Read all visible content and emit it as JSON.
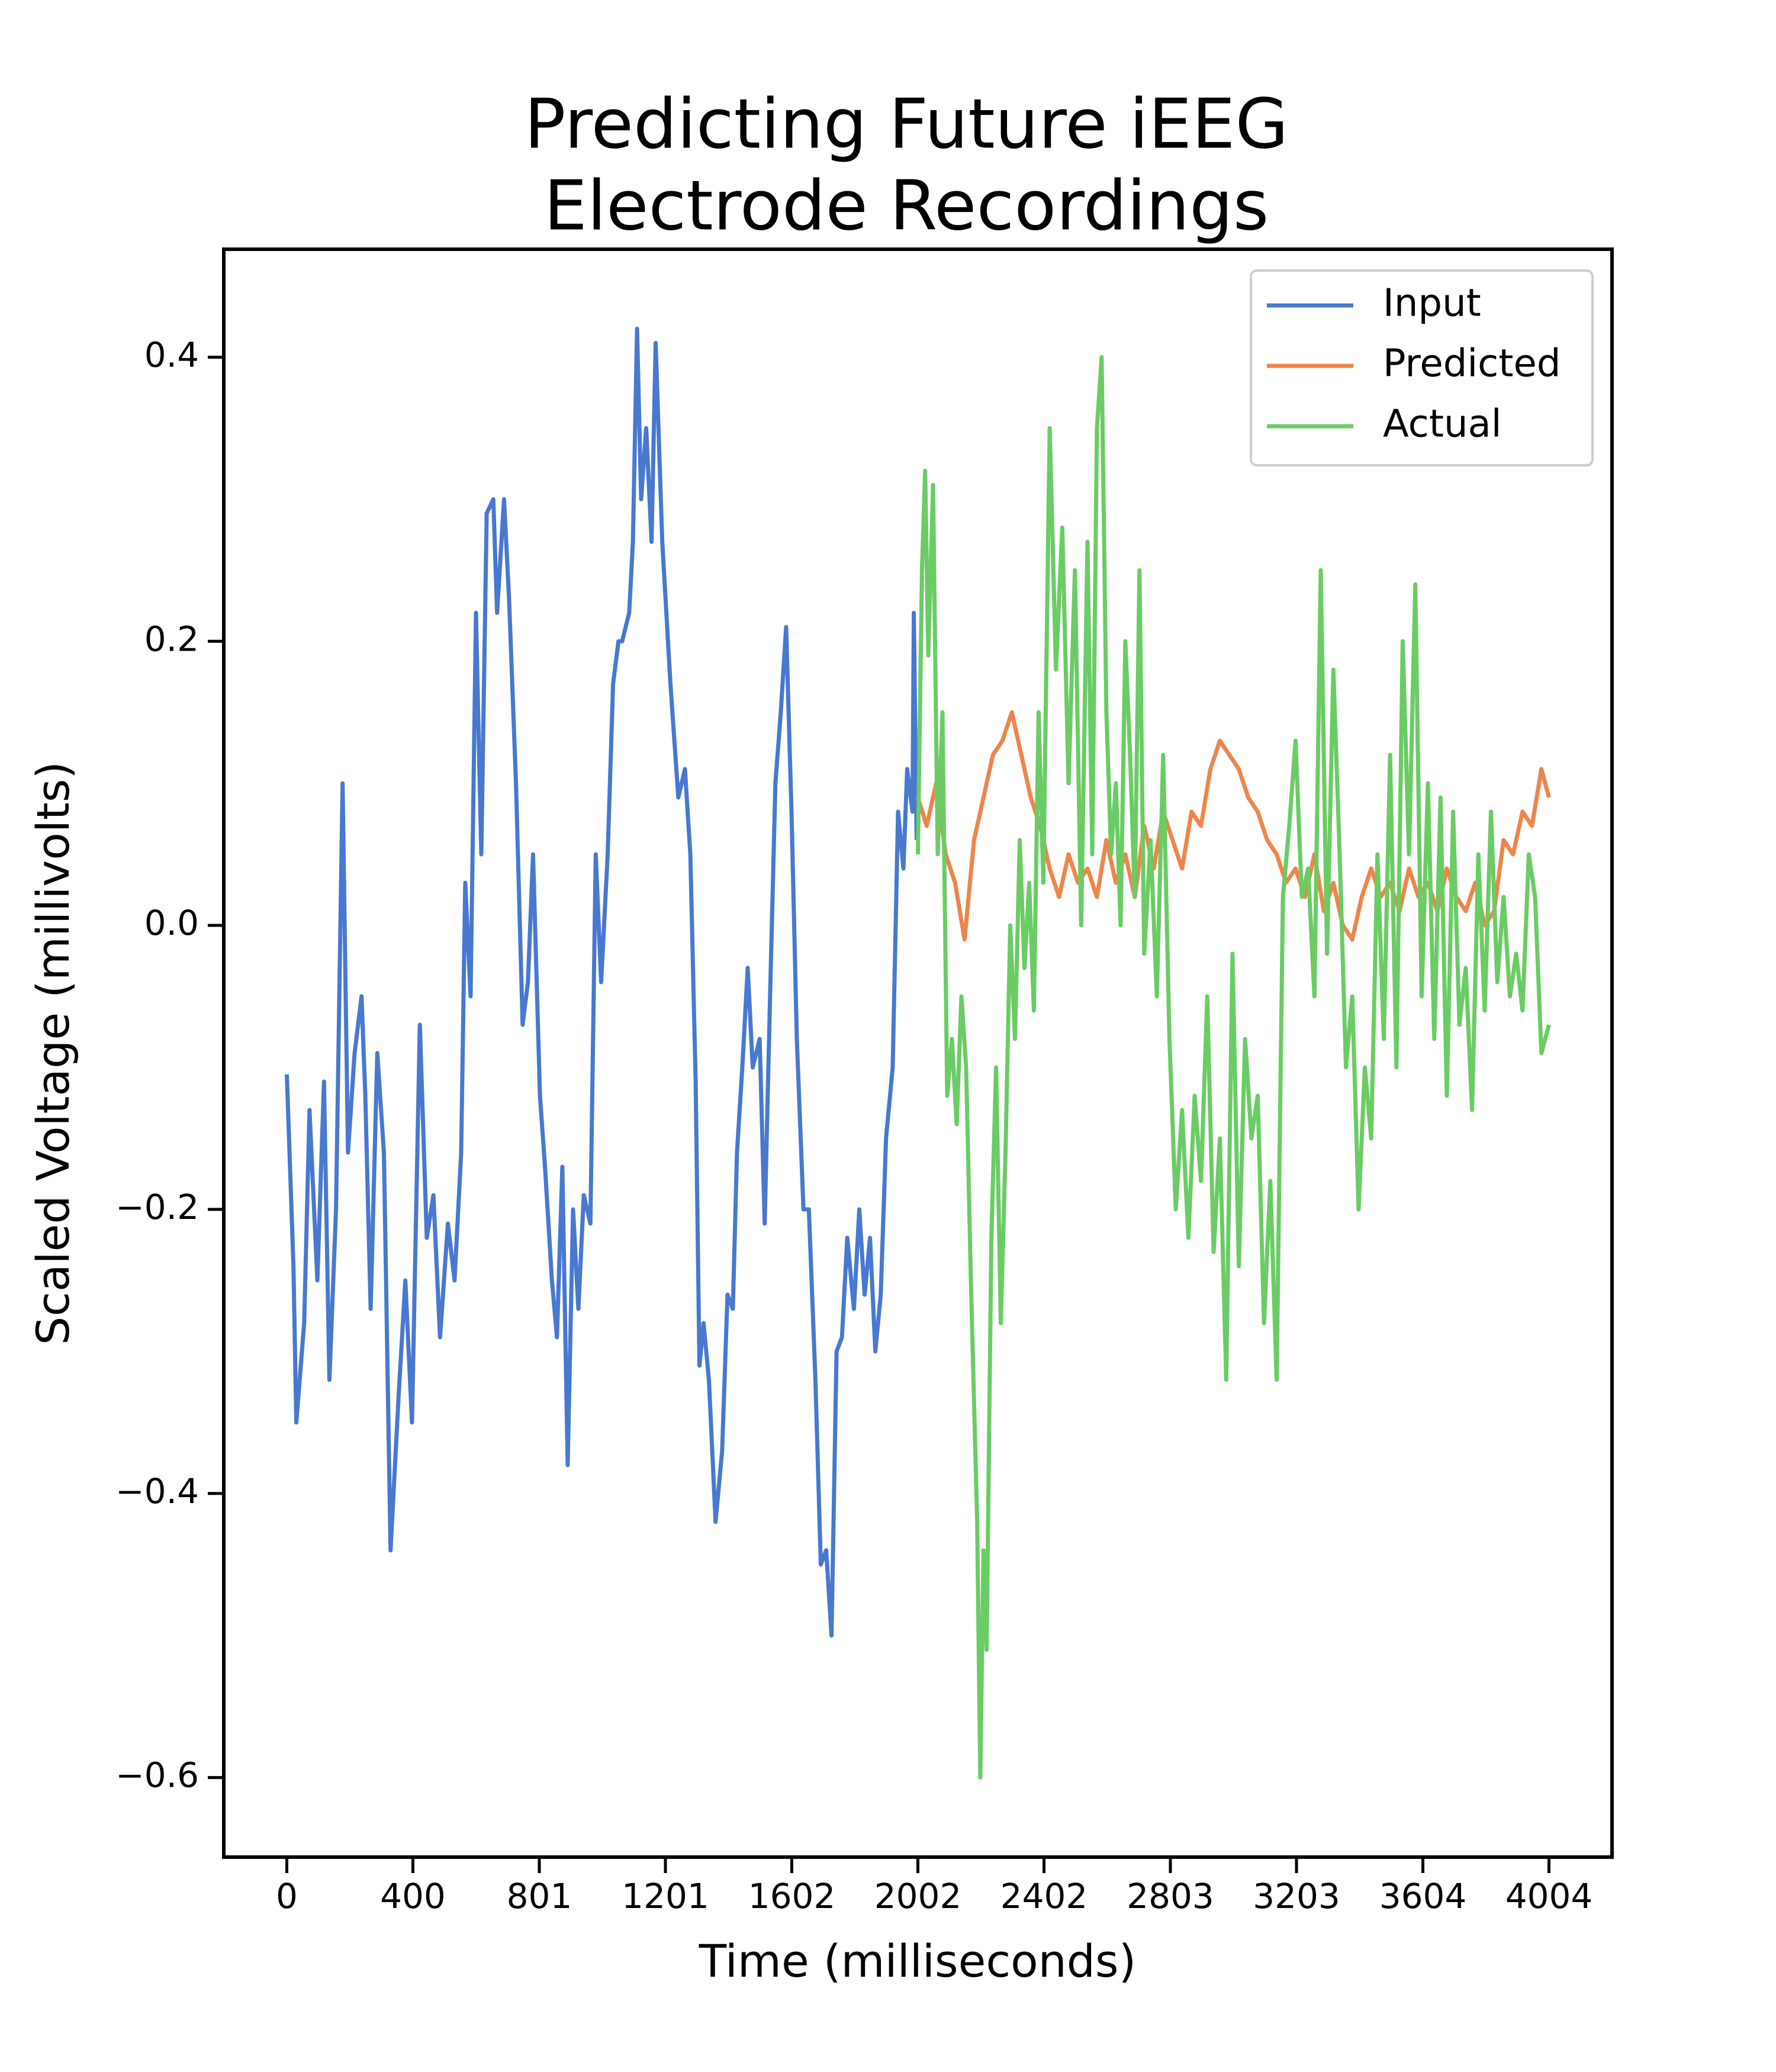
{
  "chart_data": {
    "type": "line",
    "title": [
      "Predicting Future iEEG",
      "Electrode Recordings"
    ],
    "x_label": "Time (milliseconds)",
    "y_label": "Scaled Voltage (millivolts)",
    "xlim": [
      -200,
      4204
    ],
    "ylim": [
      -0.656,
      0.476
    ],
    "xticks": [
      0,
      400,
      801,
      1201,
      1602,
      2002,
      2402,
      2803,
      3203,
      3604,
      4004
    ],
    "yticks": [
      {
        "value": -0.6,
        "label": "−0.6"
      },
      {
        "value": -0.4,
        "label": "−0.4"
      },
      {
        "value": -0.2,
        "label": "−0.2"
      },
      {
        "value": 0,
        "label": "0.0"
      },
      0.2,
      0.4
    ],
    "legend": "upper right",
    "series": [
      {
        "name": "Input",
        "color": "#4878d0",
        "x": [
          0,
          21,
          30,
          55,
          72,
          97,
          118,
          135,
          156,
          177,
          194,
          215,
          237,
          249,
          266,
          287,
          308,
          329,
          355,
          376,
          397,
          422,
          444,
          465,
          486,
          511,
          532,
          553,
          566,
          583,
          600,
          617,
          634,
          655,
          667,
          689,
          705,
          727,
          748,
          765,
          781,
          803,
          819,
          841,
          857,
          874,
          891,
          908,
          925,
          942,
          963,
          980,
          997,
          1018,
          1035,
          1052,
          1064,
          1086,
          1098,
          1111,
          1124,
          1140,
          1157,
          1170,
          1191,
          1217,
          1242,
          1263,
          1280,
          1297,
          1309,
          1322,
          1339,
          1360,
          1381,
          1398,
          1415,
          1428,
          1445,
          1462,
          1478,
          1500,
          1516,
          1533,
          1550,
          1567,
          1584,
          1601,
          1618,
          1639,
          1656,
          1677,
          1694,
          1711,
          1728,
          1744,
          1761,
          1778,
          1799,
          1816,
          1833,
          1850,
          1867,
          1884,
          1901,
          1922,
          1939,
          1956,
          1968,
          1985,
          1989,
          1998
        ],
        "values": [
          -0.105,
          -0.24,
          -0.35,
          -0.28,
          -0.13,
          -0.25,
          -0.11,
          -0.32,
          -0.2,
          0.1,
          -0.16,
          -0.09,
          -0.05,
          -0.12,
          -0.27,
          -0.09,
          -0.16,
          -0.44,
          -0.33,
          -0.25,
          -0.35,
          -0.07,
          -0.22,
          -0.19,
          -0.29,
          -0.21,
          -0.25,
          -0.16,
          0.03,
          -0.05,
          0.22,
          0.05,
          0.29,
          0.3,
          0.22,
          0.3,
          0.23,
          0.1,
          -0.07,
          -0.04,
          0.05,
          -0.12,
          -0.17,
          -0.25,
          -0.29,
          -0.17,
          -0.38,
          -0.2,
          -0.27,
          -0.19,
          -0.21,
          0.05,
          -0.04,
          0.05,
          0.17,
          0.2,
          0.2,
          0.22,
          0.27,
          0.42,
          0.3,
          0.35,
          0.27,
          0.41,
          0.27,
          0.17,
          0.09,
          0.11,
          0.05,
          -0.11,
          -0.31,
          -0.28,
          -0.32,
          -0.42,
          -0.37,
          -0.26,
          -0.27,
          -0.16,
          -0.1,
          -0.03,
          -0.1,
          -0.08,
          -0.21,
          -0.05,
          0.1,
          0.15,
          0.21,
          0.08,
          -0.08,
          -0.2,
          -0.2,
          -0.32,
          -0.45,
          -0.44,
          -0.5,
          -0.3,
          -0.29,
          -0.22,
          -0.27,
          -0.2,
          -0.26,
          -0.22,
          -0.3,
          -0.26,
          -0.15,
          -0.1,
          0.08,
          0.04,
          0.11,
          0.08,
          0.22,
          0.06
        ]
      },
      {
        "name": "Predicted",
        "color": "#ee854a",
        "x": [
          2002,
          2030,
          2060,
          2090,
          2120,
          2150,
          2180,
          2210,
          2240,
          2270,
          2300,
          2330,
          2360,
          2390,
          2420,
          2450,
          2480,
          2510,
          2540,
          2570,
          2600,
          2630,
          2660,
          2690,
          2720,
          2750,
          2780,
          2810,
          2840,
          2870,
          2900,
          2930,
          2960,
          2990,
          3020,
          3050,
          3080,
          3110,
          3140,
          3170,
          3200,
          3230,
          3260,
          3290,
          3320,
          3350,
          3380,
          3410,
          3440,
          3470,
          3500,
          3530,
          3560,
          3590,
          3620,
          3650,
          3680,
          3710,
          3740,
          3770,
          3800,
          3830,
          3860,
          3890,
          3920,
          3950,
          3980,
          4004
        ],
        "values": [
          0.09,
          0.07,
          0.1,
          0.05,
          0.03,
          -0.01,
          0.06,
          0.09,
          0.12,
          0.13,
          0.15,
          0.12,
          0.09,
          0.07,
          0.04,
          0.02,
          0.05,
          0.03,
          0.04,
          0.02,
          0.06,
          0.03,
          0.05,
          0.02,
          0.07,
          0.04,
          0.08,
          0.06,
          0.04,
          0.08,
          0.07,
          0.11,
          0.13,
          0.12,
          0.11,
          0.09,
          0.08,
          0.06,
          0.05,
          0.03,
          0.04,
          0.02,
          0.05,
          0.01,
          0.03,
          0.0,
          -0.01,
          0.02,
          0.04,
          0.02,
          0.03,
          0.01,
          0.04,
          0.02,
          0.03,
          0.01,
          0.04,
          0.02,
          0.01,
          0.03,
          0.0,
          0.01,
          0.06,
          0.05,
          0.08,
          0.07,
          0.11,
          0.09
        ]
      },
      {
        "name": "Actual",
        "color": "#6acc64",
        "x": [
          2002,
          2015,
          2025,
          2035,
          2050,
          2065,
          2080,
          2095,
          2110,
          2125,
          2140,
          2155,
          2170,
          2190,
          2200,
          2210,
          2220,
          2235,
          2250,
          2265,
          2280,
          2295,
          2310,
          2325,
          2340,
          2355,
          2370,
          2385,
          2400,
          2420,
          2440,
          2460,
          2480,
          2500,
          2520,
          2540,
          2555,
          2570,
          2585,
          2600,
          2615,
          2630,
          2645,
          2660,
          2675,
          2690,
          2705,
          2720,
          2740,
          2760,
          2780,
          2800,
          2820,
          2840,
          2860,
          2880,
          2900,
          2920,
          2940,
          2960,
          2980,
          3000,
          3020,
          3040,
          3060,
          3080,
          3100,
          3120,
          3140,
          3160,
          3180,
          3200,
          3220,
          3240,
          3260,
          3280,
          3300,
          3320,
          3340,
          3360,
          3380,
          3400,
          3420,
          3440,
          3460,
          3480,
          3500,
          3520,
          3540,
          3560,
          3580,
          3600,
          3620,
          3640,
          3660,
          3680,
          3700,
          3720,
          3740,
          3760,
          3780,
          3800,
          3820,
          3840,
          3860,
          3880,
          3900,
          3920,
          3940,
          3960,
          3980,
          4004
        ],
        "values": [
          0.05,
          0.25,
          0.32,
          0.19,
          0.31,
          0.05,
          0.15,
          -0.12,
          -0.08,
          -0.14,
          -0.05,
          -0.1,
          -0.25,
          -0.42,
          -0.6,
          -0.44,
          -0.51,
          -0.22,
          -0.1,
          -0.28,
          -0.16,
          0.0,
          -0.08,
          0.06,
          -0.03,
          0.03,
          -0.06,
          0.15,
          0.03,
          0.35,
          0.18,
          0.28,
          0.1,
          0.25,
          0.0,
          0.27,
          0.05,
          0.35,
          0.4,
          0.15,
          0.05,
          0.1,
          0.0,
          0.2,
          0.12,
          0.02,
          0.25,
          -0.02,
          0.06,
          -0.05,
          0.12,
          -0.08,
          -0.2,
          -0.13,
          -0.22,
          -0.12,
          -0.18,
          -0.05,
          -0.23,
          -0.15,
          -0.32,
          -0.02,
          -0.24,
          -0.08,
          -0.15,
          -0.12,
          -0.28,
          -0.18,
          -0.32,
          0.02,
          0.07,
          0.13,
          0.02,
          0.04,
          -0.05,
          0.25,
          -0.02,
          0.18,
          0.05,
          -0.1,
          -0.05,
          -0.2,
          -0.1,
          -0.15,
          0.05,
          -0.08,
          0.12,
          -0.1,
          0.2,
          0.05,
          0.24,
          -0.05,
          0.1,
          -0.08,
          0.09,
          -0.12,
          0.08,
          -0.07,
          -0.03,
          -0.13,
          0.05,
          -0.06,
          0.08,
          -0.04,
          0.02,
          -0.05,
          -0.02,
          -0.06,
          0.05,
          0.02,
          -0.09,
          -0.07
        ]
      }
    ]
  }
}
